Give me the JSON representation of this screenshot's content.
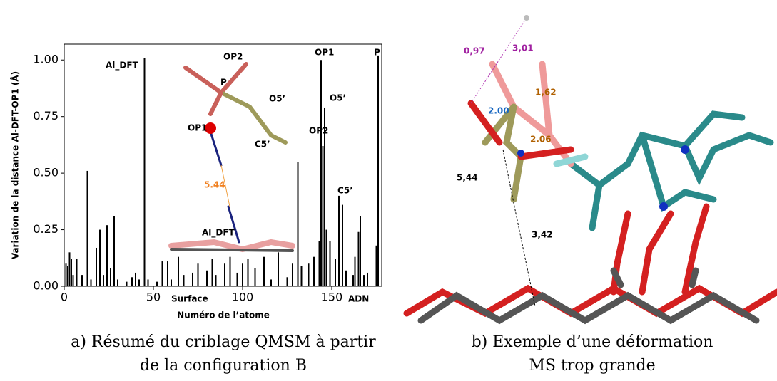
{
  "chart_data": {
    "type": "bar",
    "xlabel": "Numéro de l’atome",
    "ylabel": "Variation de la distance Al-DFT-OP1 (Å)",
    "x": [
      1,
      2,
      3,
      4,
      5,
      7,
      10,
      13,
      15,
      18,
      20,
      22,
      24,
      26,
      28,
      30,
      35,
      38,
      40,
      42,
      45,
      47,
      52,
      55,
      58,
      60,
      64,
      67,
      72,
      75,
      80,
      83,
      85,
      90,
      93,
      97,
      100,
      103,
      107,
      112,
      116,
      120,
      125,
      128,
      131,
      133,
      137,
      140,
      143,
      144,
      145,
      146,
      147,
      149,
      152,
      154,
      156,
      158,
      162,
      163,
      165,
      166,
      168,
      170,
      175,
      176
    ],
    "values": [
      0.1,
      0.09,
      0.15,
      0.12,
      0.05,
      0.12,
      0.05,
      0.51,
      0.03,
      0.17,
      0.25,
      0.05,
      0.27,
      0.08,
      0.31,
      0.03,
      0.02,
      0.04,
      0.06,
      0.03,
      1.01,
      0.03,
      0.02,
      0.11,
      0.11,
      0.03,
      0.13,
      0.05,
      0.06,
      0.1,
      0.07,
      0.12,
      0.05,
      0.1,
      0.13,
      0.06,
      0.1,
      0.12,
      0.08,
      0.13,
      0.03,
      0.15,
      0.04,
      0.1,
      0.55,
      0.09,
      0.1,
      0.13,
      0.2,
      1.0,
      0.62,
      0.79,
      0.25,
      0.2,
      0.12,
      0.4,
      0.36,
      0.07,
      0.05,
      0.13,
      0.24,
      0.31,
      0.05,
      0.06,
      0.18,
      1.02
    ],
    "color": "#000000",
    "xlim": [
      0,
      178
    ],
    "ylim": [
      0,
      1.07
    ],
    "xticks": [
      0,
      50,
      100,
      150
    ],
    "yticks": [
      {
        "value": 0,
        "label": "0.00"
      },
      {
        "value": 0.25,
        "label": "0.25"
      },
      {
        "value": 0.5,
        "label": "0.50"
      },
      {
        "value": 0.75,
        "label": "0.75"
      },
      {
        "value": 1,
        "label": "1.00"
      }
    ],
    "annotations": [
      "Al_DFT",
      "OP1",
      "OP2",
      "O5’",
      "C5’",
      "P"
    ],
    "regions": [
      "Surface",
      "ADN"
    ],
    "inset_labels": [
      "OP2",
      "P",
      "O5’",
      "OP1",
      "C5’",
      "5.44",
      "Al_DFT"
    ]
  },
  "figure_b": {
    "labels": [
      "0,97",
      "3,01",
      "1,62",
      "2.00",
      "2.06",
      "5,44",
      "3,42"
    ]
  },
  "captions": [
    [
      "a) Résumé du criblage QMSM à partir",
      "de la configuration B"
    ],
    [
      "b) Exemple d’une déformation",
      "MS trop grande"
    ]
  ]
}
